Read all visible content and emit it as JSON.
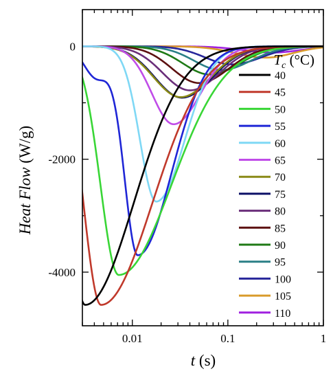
{
  "chart_data": {
    "type": "line",
    "x_axis": {
      "label_var": "t",
      "label_unit": " (s)",
      "scale": "log",
      "range": [
        0.003,
        1
      ],
      "ticks": [
        {
          "value": 0.01,
          "label": "0.01"
        },
        {
          "value": 0.1,
          "label": "0.1"
        },
        {
          "value": 1,
          "label": "1"
        }
      ]
    },
    "y_axis": {
      "label_var": "Heat Flow",
      "label_unit": " (W/g)",
      "scale": "linear",
      "range": [
        -4950,
        650
      ],
      "ticks": [
        {
          "value": 0,
          "label": "0"
        },
        {
          "value": -2000,
          "label": "-2000"
        },
        {
          "value": -4000,
          "label": "-4000"
        }
      ]
    },
    "legend": {
      "title_var": "T",
      "title_sub": "c",
      "title_unit": " (°C)",
      "placement": "right"
    },
    "series": [
      {
        "name": "40",
        "color": "#000000",
        "t_min": 0.0025,
        "t_peak": 0.0032,
        "depth": 4580,
        "w_left": 0.24,
        "w_right": 0.72
      },
      {
        "name": "45",
        "color": "#c0392b",
        "t_min": 0.0025,
        "t_peak": 0.0047,
        "depth": 4580,
        "w_left": 0.26,
        "w_right": 0.76
      },
      {
        "name": "50",
        "color": "#39d636",
        "t_min": 0.0025,
        "t_peak": 0.0072,
        "depth": 4050,
        "w_left": 0.27,
        "w_right": 0.78
      },
      {
        "name": "55",
        "color": "#1f26d6",
        "t_min": 0.0025,
        "t_peak": 0.0114,
        "depth": 3700,
        "w_left": 0.2,
        "w_right": 0.5,
        "hump": {
          "value": -550,
          "t": 0.0042
        }
      },
      {
        "name": "60",
        "color": "#7fd8f5",
        "t_min": 0.0025,
        "t_peak": 0.0178,
        "depth": 2750,
        "w_left": 0.24,
        "w_right": 0.42
      },
      {
        "name": "65",
        "color": "#c04ce8",
        "t_min": 0.0025,
        "t_peak": 0.027,
        "depth": 1380,
        "w_left": 0.32,
        "w_right": 0.4
      },
      {
        "name": "70",
        "color": "#8a8a16",
        "t_min": 0.0025,
        "t_peak": 0.032,
        "depth": 900,
        "w_left": 0.4,
        "w_right": 0.45
      },
      {
        "name": "75",
        "color": "#0b0f66",
        "t_min": 0.0025,
        "t_peak": 0.033,
        "depth": 910,
        "w_left": 0.4,
        "w_right": 0.45
      },
      {
        "name": "80",
        "color": "#6a2e7a",
        "t_min": 0.0025,
        "t_peak": 0.04,
        "depth": 780,
        "w_left": 0.4,
        "w_right": 0.44
      },
      {
        "name": "85",
        "color": "#5c1010",
        "t_min": 0.0025,
        "t_peak": 0.05,
        "depth": 650,
        "w_left": 0.4,
        "w_right": 0.44
      },
      {
        "name": "90",
        "color": "#1f7a16",
        "t_min": 0.0025,
        "t_peak": 0.065,
        "depth": 500,
        "w_left": 0.4,
        "w_right": 0.44
      },
      {
        "name": "95",
        "color": "#2a7f86",
        "t_min": 0.0025,
        "t_peak": 0.085,
        "depth": 420,
        "w_left": 0.4,
        "w_right": 0.44
      },
      {
        "name": "100",
        "color": "#27269a",
        "t_min": 0.0025,
        "t_peak": 0.11,
        "depth": 320,
        "w_left": 0.4,
        "w_right": 0.44
      },
      {
        "name": "105",
        "color": "#d99b2b",
        "t_min": 0.0025,
        "t_peak": 0.25,
        "depth": 200,
        "w_left": 0.45,
        "w_right": 0.4
      },
      {
        "name": "110",
        "color": "#a020e0",
        "t_min": 0.0025,
        "t_peak": 0.3,
        "depth": 110,
        "w_left": 0.45,
        "w_right": 0.4
      }
    ]
  }
}
